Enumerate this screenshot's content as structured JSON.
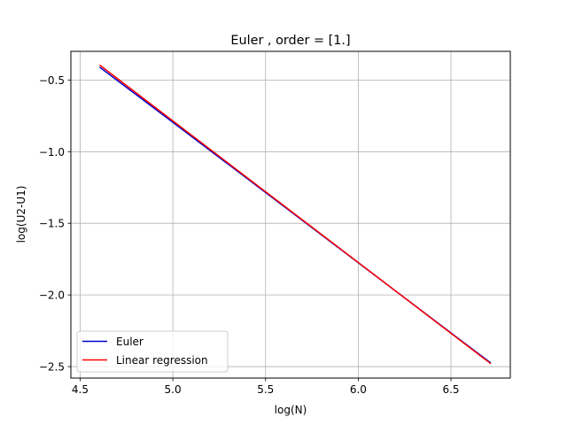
{
  "chart_data": {
    "type": "line",
    "title": "Euler , order = [1.]",
    "xlabel": "log(N)",
    "ylabel": "log(U2-U1)",
    "xlim": [
      4.45,
      6.82
    ],
    "ylim": [
      -2.58,
      -0.3
    ],
    "xticks": [
      4.5,
      5.0,
      5.5,
      6.0,
      6.5
    ],
    "xtick_labels": [
      "4.5",
      "5.0",
      "5.5",
      "6.0",
      "6.5"
    ],
    "yticks": [
      -0.5,
      -1.0,
      -1.5,
      -2.0,
      -2.5
    ],
    "ytick_labels": [
      "−0.5",
      "−1.0",
      "−1.5",
      "−2.0",
      "−2.5"
    ],
    "grid": true,
    "legend_position": "lower-left",
    "series": [
      {
        "name": "Euler",
        "color": "#0000cc",
        "x": [
          4.605,
          5.0,
          5.5,
          6.0,
          6.5,
          6.715
        ],
        "y": [
          -0.41,
          -0.795,
          -1.285,
          -1.775,
          -2.265,
          -2.475
        ]
      },
      {
        "name": "Linear regression",
        "color": "#ff0000",
        "x": [
          4.605,
          6.715
        ],
        "y": [
          -0.395,
          -2.48
        ]
      }
    ]
  }
}
